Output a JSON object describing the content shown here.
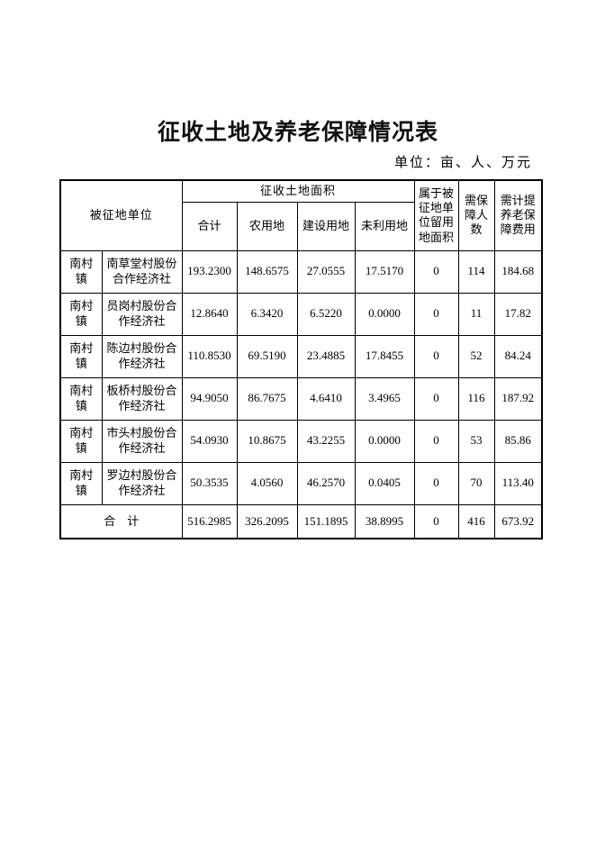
{
  "page": {
    "title": "征收土地及养老保障情况表",
    "unit_note": "单位：亩、人、万元"
  },
  "table": {
    "header": {
      "expropriated_unit": "被征地单位",
      "land_area_group": "征收土地面积",
      "col_total": "合计",
      "col_agricultural": "农用地",
      "col_construction": "建设用地",
      "col_unused": "未利用地",
      "col_reserved_land": "属于被\n征地单\n位留用\n地面积",
      "col_people": "需保\n障人\n数",
      "col_pension_fee": "需计提\n养老保\n障费用"
    },
    "rows": [
      {
        "town": "南村镇",
        "village": "南草堂村股份合作经济社",
        "total": "193.2300",
        "agricultural": "148.6575",
        "construction": "27.0555",
        "unused": "17.5170",
        "reserved": "0",
        "people": "114",
        "fee": "184.68"
      },
      {
        "town": "南村镇",
        "village": "员岗村股份合作经济社",
        "total": "12.8640",
        "agricultural": "6.3420",
        "construction": "6.5220",
        "unused": "0.0000",
        "reserved": "0",
        "people": "11",
        "fee": "17.82"
      },
      {
        "town": "南村镇",
        "village": "陈边村股份合作经济社",
        "total": "110.8530",
        "agricultural": "69.5190",
        "construction": "23.4885",
        "unused": "17.8455",
        "reserved": "0",
        "people": "52",
        "fee": "84.24"
      },
      {
        "town": "南村镇",
        "village": "板桥村股份合作经济社",
        "total": "94.9050",
        "agricultural": "86.7675",
        "construction": "4.6410",
        "unused": "3.4965",
        "reserved": "0",
        "people": "116",
        "fee": "187.92"
      },
      {
        "town": "南村镇",
        "village": "市头村股份合作经济社",
        "total": "54.0930",
        "agricultural": "10.8675",
        "construction": "43.2255",
        "unused": "0.0000",
        "reserved": "0",
        "people": "53",
        "fee": "85.86"
      },
      {
        "town": "南村镇",
        "village": "罗边村股份合作经济社",
        "total": "50.3535",
        "agricultural": "4.0560",
        "construction": "46.2570",
        "unused": "0.0405",
        "reserved": "0",
        "people": "70",
        "fee": "113.40"
      }
    ],
    "total_row": {
      "label": "合　计",
      "total": "516.2985",
      "agricultural": "326.2095",
      "construction": "151.1895",
      "unused": "38.8995",
      "reserved": "0",
      "people": "416",
      "fee": "673.92"
    }
  }
}
